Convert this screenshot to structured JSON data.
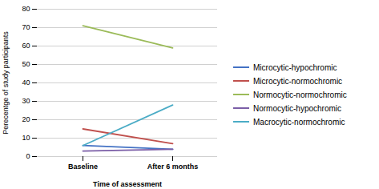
{
  "chart_data": {
    "type": "line",
    "categories": [
      "Baseline",
      "After 6 months"
    ],
    "series": [
      {
        "name": "Microcytic-hypochromic",
        "color": "#4472C4",
        "values": [
          6,
          4
        ]
      },
      {
        "name": "Microcytic-normochromic",
        "color": "#C0504D",
        "values": [
          15,
          7
        ]
      },
      {
        "name": "Normocytic-normochromic",
        "color": "#9BBB59",
        "values": [
          71,
          59
        ]
      },
      {
        "name": "Normocytic-hypochromic",
        "color": "#7B5EA7",
        "values": [
          3,
          4
        ]
      },
      {
        "name": "Macrocytic-normochromic",
        "color": "#4BACC6",
        "values": [
          6,
          28
        ]
      }
    ],
    "xlabel": "Time of assessment",
    "ylabel": "Perecentge of study participants",
    "ylim": [
      0,
      80
    ],
    "yticks": [
      0,
      10,
      20,
      30,
      40,
      50,
      60,
      70,
      80
    ],
    "grid": true,
    "legend": "right"
  }
}
